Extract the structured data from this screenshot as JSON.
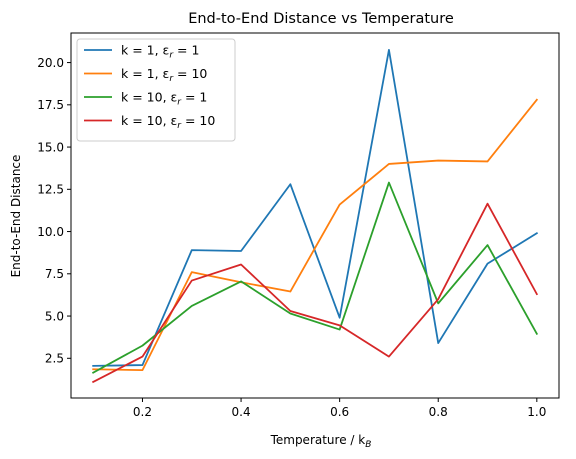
{
  "chart_data": {
    "type": "line",
    "title": "End-to-End Distance vs Temperature",
    "xlabel": "Temperature / k",
    "xlabel_sub": "B",
    "ylabel": "End-to-End Distance",
    "xlim": [
      0.055,
      1.045
    ],
    "ylim": [
      0.15,
      21.75
    ],
    "xticks": [
      0.2,
      0.4,
      0.6,
      0.8,
      1.0
    ],
    "xtick_labels": [
      "0.2",
      "0.4",
      "0.6",
      "0.8",
      "1.0"
    ],
    "yticks": [
      2.5,
      5.0,
      7.5,
      10.0,
      12.5,
      15.0,
      17.5,
      20.0
    ],
    "ytick_labels": [
      "2.5",
      "5.0",
      "7.5",
      "10.0",
      "12.5",
      "15.0",
      "17.5",
      "20.0"
    ],
    "grid": false,
    "legend_position": "top-left",
    "x": [
      0.1,
      0.2,
      0.3,
      0.4,
      0.5,
      0.6,
      0.7,
      0.8,
      0.9,
      1.0
    ],
    "series": [
      {
        "name": "k = 1, ε_r = 1",
        "label_main": "k = 1, ε",
        "label_sub": "r",
        "label_tail": " = 1",
        "color": "#1f77b4",
        "values": [
          2.05,
          2.1,
          8.9,
          8.85,
          12.8,
          4.9,
          20.75,
          3.4,
          8.1,
          9.9
        ]
      },
      {
        "name": "k = 1, ε_r = 10",
        "label_main": "k = 1, ε",
        "label_sub": "r",
        "label_tail": " = 10",
        "color": "#ff7f0e",
        "values": [
          1.85,
          1.8,
          7.6,
          7.0,
          6.45,
          11.6,
          14.0,
          14.2,
          14.15,
          17.8
        ]
      },
      {
        "name": "k = 10, ε_r = 1",
        "label_main": "k = 10, ε",
        "label_sub": "r",
        "label_tail": " = 1",
        "color": "#2ca02c",
        "values": [
          1.65,
          3.25,
          5.6,
          7.05,
          5.15,
          4.2,
          12.9,
          5.75,
          9.2,
          3.95
        ]
      },
      {
        "name": "k = 10, ε_r = 10",
        "label_main": "k = 10, ε",
        "label_sub": "r",
        "label_tail": " = 10",
        "color": "#d62728",
        "values": [
          1.1,
          2.6,
          7.1,
          8.05,
          5.3,
          4.45,
          2.6,
          6.0,
          11.65,
          6.3
        ]
      }
    ]
  }
}
